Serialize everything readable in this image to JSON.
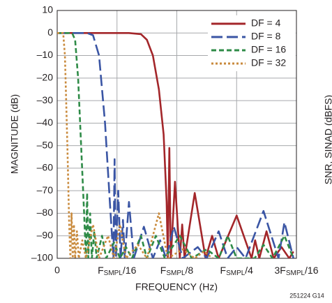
{
  "chart_data": {
    "type": "line",
    "xlabel": "FREQUENCY (Hz)",
    "ylabel": "MAGNITUDE (dB)",
    "annotations": [
      "251224 G14",
      "SNR, SINAD (dBFS)"
    ],
    "xlim": [
      0,
      4
    ],
    "xticks": [
      0,
      {
        "value": 1,
        "label": "FSMPL/16"
      },
      {
        "value": 2,
        "label": "FSMPL/8"
      },
      {
        "value": 3,
        "label": "FSMPL/4"
      },
      {
        "value": 4,
        "label": "3FSMPL/16"
      }
    ],
    "ylim": [
      -100,
      10
    ],
    "yticks": [
      {
        "value": -100,
        "label": "–100"
      },
      {
        "value": -90,
        "label": "–90"
      },
      {
        "value": -80,
        "label": "–80"
      },
      {
        "value": -70,
        "label": "–70"
      },
      {
        "value": -60,
        "label": "–60"
      },
      {
        "value": -50,
        "label": "–50"
      },
      {
        "value": -40,
        "label": "–40"
      },
      {
        "value": -30,
        "label": "–30"
      },
      {
        "value": -20,
        "label": "–20"
      },
      {
        "value": -10,
        "label": "–10"
      },
      0,
      10
    ],
    "grid": true,
    "legend": "upper right",
    "series": [
      {
        "name": "DF = 4",
        "color": "#a3262a",
        "dash": "solid",
        "x": [
          0,
          1.2,
          1.4,
          1.5,
          1.6,
          1.7,
          1.78,
          1.83,
          1.85,
          1.875,
          1.9,
          1.97,
          2.05,
          2.09,
          2.13,
          2.3,
          2.48,
          2.59,
          2.7,
          3.0,
          3.25,
          3.31,
          3.38,
          3.5,
          3.62,
          3.75,
          3.88,
          3.95
        ],
        "values": [
          0,
          0,
          -0.5,
          -3,
          -10,
          -25,
          -45,
          -75,
          -100,
          -51,
          -100,
          -66,
          -100,
          -85,
          -100,
          -71,
          -100,
          -90,
          -100,
          -81,
          -100,
          -92,
          -100,
          -88,
          -100,
          -95,
          -100,
          -97
        ]
      },
      {
        "name": "DF = 8",
        "color": "#3a55a4",
        "dash": "long",
        "x": [
          0,
          0.5,
          0.6,
          0.7,
          0.8,
          0.88,
          0.94,
          0.96,
          0.98,
          1.02,
          1.06,
          1.1,
          1.13,
          1.2,
          1.28,
          1.45,
          1.6,
          1.72,
          1.82,
          1.95,
          2.1,
          2.35,
          2.5,
          2.7,
          2.85,
          3.0,
          3.15,
          3.45,
          3.7,
          3.8,
          3.95
        ],
        "values": [
          0,
          0,
          -1,
          -10,
          -40,
          -75,
          -100,
          -56,
          -100,
          -70,
          -100,
          -83,
          -100,
          -75,
          -100,
          -86,
          -100,
          -92,
          -100,
          -86,
          -100,
          -95,
          -100,
          -88,
          -100,
          -95,
          -100,
          -79,
          -100,
          -84,
          -100
        ]
      },
      {
        "name": "DF = 16",
        "color": "#2e8b47",
        "dash": "medium",
        "x": [
          0,
          0.25,
          0.3,
          0.35,
          0.4,
          0.45,
          0.48,
          0.5,
          0.52,
          0.55,
          0.58,
          0.62,
          0.66,
          0.75,
          0.82,
          0.95,
          1.05,
          1.15,
          1.25,
          1.4,
          1.5,
          1.65,
          1.8,
          2.05,
          2.25,
          2.5,
          2.7,
          2.85,
          3.0,
          3.3,
          3.45,
          3.6,
          3.8,
          3.95
        ],
        "values": [
          0,
          0,
          -3,
          -20,
          -50,
          -80,
          -100,
          -71,
          -100,
          -80,
          -100,
          -88,
          -100,
          -90,
          -100,
          -93,
          -100,
          -95,
          -100,
          -90,
          -100,
          -90,
          -100,
          -90,
          -100,
          -96,
          -100,
          -90,
          -100,
          -100,
          -94,
          -100,
          -90,
          -100
        ]
      },
      {
        "name": "DF = 32",
        "color": "#c98a3c",
        "dash": "short",
        "x": [
          0,
          0.1,
          0.13,
          0.17,
          0.2,
          0.22,
          0.24,
          0.26,
          0.28,
          0.3,
          0.33,
          0.36,
          0.42,
          0.48,
          0.6,
          0.7,
          0.85,
          0.95,
          1.05,
          1.15,
          1.35,
          1.5,
          1.7,
          1.85,
          2.1,
          2.3,
          2.45,
          2.6
        ],
        "values": [
          0,
          0,
          -10,
          -50,
          -85,
          -100,
          -80,
          -100,
          -85,
          -100,
          -88,
          -100,
          -92,
          -100,
          -85,
          -100,
          -90,
          -100,
          -85,
          -100,
          -94,
          -100,
          -80,
          -100,
          -96,
          -100,
          -97,
          -100
        ]
      }
    ]
  }
}
